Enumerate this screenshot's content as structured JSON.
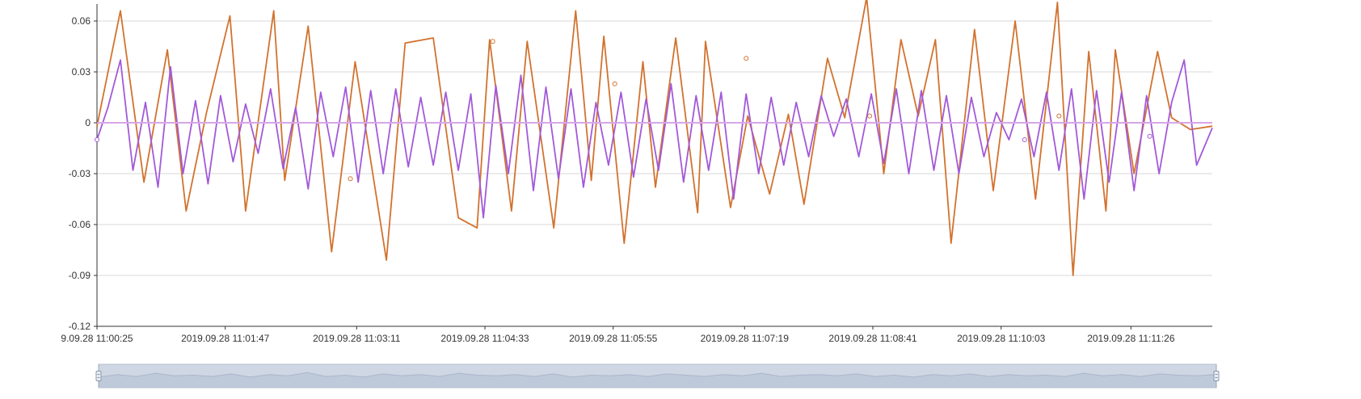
{
  "chart_data": {
    "type": "line",
    "title": "",
    "xlabel": "",
    "ylabel": "",
    "ylim": [
      -0.12,
      0.07
    ],
    "y_ticks": [
      "0.06",
      "0.03",
      "0",
      "-0.03",
      "-0.06",
      "-0.09",
      "-0.12"
    ],
    "y_tick_values": [
      0.06,
      0.03,
      0,
      -0.03,
      -0.06,
      -0.09,
      -0.12
    ],
    "x_ticks": [
      "9.09.28 11:00:25",
      "2019.09.28 11:01:47",
      "2019.09.28 11:03:11",
      "2019.09.28 11:04:33",
      "2019.09.28 11:05:55",
      "2019.09.28 11:07:19",
      "2019.09.28 11:08:41",
      "2019.09.28 11:10:03",
      "2019.09.28 11:11:26"
    ],
    "x_tick_seconds": [
      25,
      107,
      191,
      273,
      355,
      439,
      521,
      603,
      686
    ],
    "x_range_seconds": [
      25,
      738
    ],
    "grid": true,
    "legend": "none",
    "series": [
      {
        "color": "#d2722e",
        "x": [
          25,
          40,
          55,
          70,
          82,
          95,
          110,
          120,
          138,
          145,
          160,
          175,
          190,
          210,
          222,
          240,
          256,
          268,
          276,
          290,
          300,
          317,
          331,
          341,
          349,
          362,
          374,
          382,
          395,
          409,
          414,
          430,
          441,
          455,
          467,
          477,
          492,
          503,
          517,
          528,
          539,
          550,
          561,
          571,
          586,
          598,
          612,
          625,
          639,
          649,
          659,
          670,
          676,
          688,
          703,
          712,
          724,
          738
        ],
        "values": [
          -0.002,
          0.066,
          -0.035,
          0.043,
          -0.052,
          0.006,
          0.063,
          -0.052,
          0.066,
          -0.034,
          0.057,
          -0.076,
          0.036,
          -0.081,
          0.047,
          0.05,
          -0.056,
          -0.062,
          0.049,
          -0.052,
          0.048,
          -0.062,
          0.066,
          -0.034,
          0.051,
          -0.071,
          0.036,
          -0.038,
          0.05,
          -0.053,
          0.048,
          -0.05,
          0.004,
          -0.042,
          0.005,
          -0.048,
          0.038,
          0.003,
          0.074,
          -0.03,
          0.049,
          0.004,
          0.049,
          -0.071,
          0.055,
          -0.04,
          0.06,
          -0.045,
          0.071,
          -0.09,
          0.042,
          -0.052,
          0.043,
          -0.03,
          0.042,
          0.003,
          -0.004,
          -0.002
        ],
        "markers": [
          {
            "x": 278,
            "y": 0.048
          },
          {
            "x": 187,
            "y": -0.033
          },
          {
            "x": 356,
            "y": 0.023
          },
          {
            "x": 440,
            "y": 0.038
          },
          {
            "x": 519,
            "y": 0.004
          },
          {
            "x": 640,
            "y": 0.004
          }
        ]
      },
      {
        "color": "#a259d9",
        "x": [
          25,
          32,
          40,
          48,
          56,
          64,
          72,
          80,
          88,
          96,
          104,
          112,
          120,
          128,
          136,
          144,
          152,
          160,
          168,
          176,
          184,
          192,
          200,
          208,
          216,
          224,
          232,
          240,
          248,
          256,
          264,
          272,
          280,
          288,
          296,
          304,
          312,
          320,
          328,
          336,
          344,
          352,
          360,
          368,
          376,
          384,
          392,
          400,
          408,
          416,
          424,
          432,
          440,
          448,
          456,
          464,
          472,
          480,
          488,
          496,
          504,
          512,
          520,
          528,
          536,
          544,
          552,
          560,
          568,
          576,
          584,
          592,
          600,
          608,
          616,
          624,
          632,
          640,
          648,
          656,
          664,
          672,
          680,
          688,
          696,
          704,
          712,
          720,
          728,
          738
        ],
        "values": [
          -0.01,
          0.009,
          0.037,
          -0.028,
          0.012,
          -0.038,
          0.033,
          -0.03,
          0.013,
          -0.036,
          0.016,
          -0.023,
          0.011,
          -0.018,
          0.02,
          -0.027,
          0.009,
          -0.039,
          0.018,
          -0.02,
          0.021,
          -0.035,
          0.019,
          -0.03,
          0.02,
          -0.026,
          0.015,
          -0.025,
          0.018,
          -0.028,
          0.017,
          -0.056,
          0.022,
          -0.03,
          0.028,
          -0.04,
          0.021,
          -0.033,
          0.02,
          -0.038,
          0.012,
          -0.025,
          0.018,
          -0.032,
          0.014,
          -0.028,
          0.023,
          -0.035,
          0.016,
          -0.028,
          0.018,
          -0.045,
          0.017,
          -0.03,
          0.015,
          -0.025,
          0.012,
          -0.02,
          0.016,
          -0.008,
          0.014,
          -0.02,
          0.017,
          -0.024,
          0.02,
          -0.03,
          0.019,
          -0.028,
          0.016,
          -0.03,
          0.015,
          -0.02,
          0.006,
          -0.01,
          0.014,
          -0.02,
          0.018,
          -0.028,
          0.02,
          -0.045,
          0.019,
          -0.035,
          0.018,
          -0.04,
          0.016,
          -0.03,
          0.012,
          0.037,
          -0.025,
          -0.003
        ],
        "markers": [
          {
            "x": 25,
            "y": -0.01
          },
          {
            "x": 618,
            "y": -0.01
          },
          {
            "x": 698,
            "y": -0.008
          }
        ]
      },
      {
        "color": "#d8a6e6",
        "x": [
          25,
          738
        ],
        "values": [
          0,
          0
        ]
      }
    ],
    "overview_values": [
      0.2,
      0.6,
      0.3,
      0.8,
      0.4,
      0.5,
      0.3,
      0.7,
      0.2,
      0.6,
      0.4,
      0.9,
      0.3,
      0.5,
      0.2,
      0.7,
      0.4,
      0.6,
      0.3,
      0.8,
      0.5,
      0.4,
      0.6,
      0.3,
      0.7,
      0.2,
      0.5,
      0.4,
      0.6,
      0.3,
      0.7,
      0.5,
      0.3,
      0.6,
      0.4,
      0.8,
      0.3,
      0.5,
      0.6,
      0.4,
      0.7,
      0.3,
      0.5,
      0.2,
      0.6,
      0.4,
      0.7,
      0.3,
      0.6,
      0.4,
      0.5,
      0.3,
      0.8,
      0.4,
      0.6,
      0.3,
      0.7,
      0.5,
      0.4,
      0.6
    ],
    "zoom_window": [
      0,
      1
    ]
  }
}
